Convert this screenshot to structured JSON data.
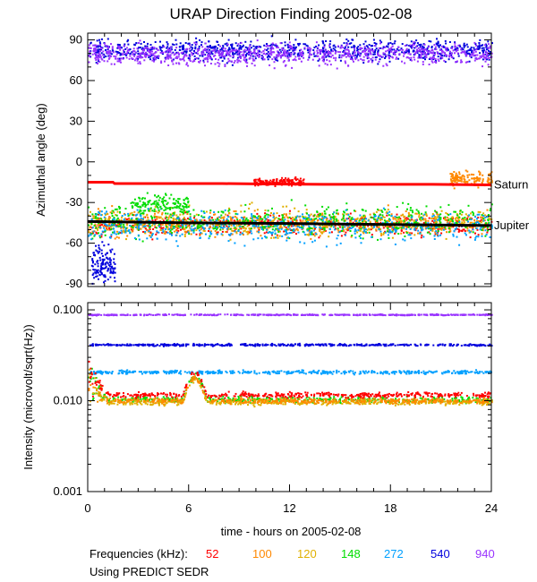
{
  "chart_data": [
    {
      "type": "scatter",
      "title": "URAP Direction Finding  2005-02-08",
      "ylabel": "Azimuthal angle (deg)",
      "ylim": [
        -92,
        95
      ],
      "xlim": [
        0,
        24
      ],
      "y_ticks": [
        "90",
        "60",
        "30",
        "0",
        "-30",
        "-60",
        "-90"
      ],
      "y_tick_values": [
        90,
        60,
        30,
        0,
        -30,
        -60,
        -90
      ],
      "reference_lines": [
        {
          "name": "Saturn",
          "color": "#ff0000",
          "x": [
            0,
            1.5,
            1.6,
            8,
            10,
            14,
            18,
            20.5,
            24
          ],
          "y": [
            -15,
            -15,
            -16,
            -16,
            -16.3,
            -16.6,
            -16.6,
            -16.6,
            -17
          ]
        },
        {
          "name": "Jupiter",
          "color": "#000000",
          "x": [
            0,
            6,
            12,
            18,
            24
          ],
          "y": [
            -44,
            -45,
            -45.5,
            -46.3,
            -47
          ]
        }
      ],
      "series": [
        {
          "freq": "52",
          "color": "#ff0000",
          "center": -46,
          "spread": 6
        },
        {
          "freq": "100",
          "color": "#ff8800",
          "center": -45,
          "spread": 7
        },
        {
          "freq": "120",
          "color": "#e0b000",
          "center": -44,
          "spread": 8
        },
        {
          "freq": "148",
          "color": "#00dd00",
          "center": -43,
          "spread": 9
        },
        {
          "freq": "272",
          "color": "#00a0ff",
          "center": -47,
          "spread": 9
        },
        {
          "freq": "540",
          "color": "#0000dd",
          "center": 83,
          "spread": 6
        },
        {
          "freq": "940",
          "color": "#9933ff",
          "center": 80,
          "spread": 6
        }
      ],
      "clusters": [
        {
          "color": "#ff0000",
          "x_range": [
            9.8,
            12.8
          ],
          "y_center": -14,
          "spread": 2.5
        },
        {
          "color": "#ff8800",
          "x_range": [
            21.5,
            24
          ],
          "y_center": -12,
          "spread": 5
        },
        {
          "color": "#00dd00",
          "x_range": [
            2.5,
            6
          ],
          "y_center": -30,
          "spread": 6
        },
        {
          "color": "#0000dd",
          "x_range": [
            0.2,
            1.6
          ],
          "y_center": -75,
          "spread": 12
        }
      ]
    },
    {
      "type": "scatter",
      "ylabel": "Intensity (microvolt/sqrt(Hz))",
      "yscale": "log",
      "ylim": [
        0.001,
        0.12
      ],
      "xlim": [
        0,
        24
      ],
      "xlabel": "time - hours on 2005-02-08",
      "x_ticks": [
        "0",
        "6",
        "12",
        "18",
        "24"
      ],
      "x_tick_values": [
        0,
        6,
        12,
        18,
        24
      ],
      "y_ticks": [
        "0.100",
        "0.010",
        "0.001"
      ],
      "y_tick_values": [
        0.1,
        0.01,
        0.001
      ],
      "series": [
        {
          "freq": "940",
          "color": "#9933ff",
          "level": 0.09,
          "noise": 0.01
        },
        {
          "freq": "540",
          "color": "#0000dd",
          "level": 0.042,
          "noise": 0.02
        },
        {
          "freq": "272",
          "color": "#00a0ff",
          "level": 0.021,
          "noise": 0.03
        },
        {
          "freq": "148",
          "color": "#00dd00",
          "level": 0.0105,
          "noise": 0.06
        },
        {
          "freq": "120",
          "color": "#e0b000",
          "level": 0.0098,
          "noise": 0.05
        },
        {
          "freq": "100",
          "color": "#ff8800",
          "level": 0.0102,
          "noise": 0.05
        },
        {
          "freq": "52",
          "color": "#ff0000",
          "level": 0.0118,
          "noise": 0.05
        }
      ]
    }
  ],
  "legend": {
    "label": "Frequencies (kHz):",
    "items": [
      {
        "text": "52",
        "color": "#ff0000"
      },
      {
        "text": "100",
        "color": "#ff8800"
      },
      {
        "text": "120",
        "color": "#e0b000"
      },
      {
        "text": "148",
        "color": "#00dd00"
      },
      {
        "text": "272",
        "color": "#00a0ff"
      },
      {
        "text": "540",
        "color": "#0000dd"
      },
      {
        "text": "940",
        "color": "#9933ff"
      }
    ]
  },
  "note": "Using PREDICT SEDR"
}
